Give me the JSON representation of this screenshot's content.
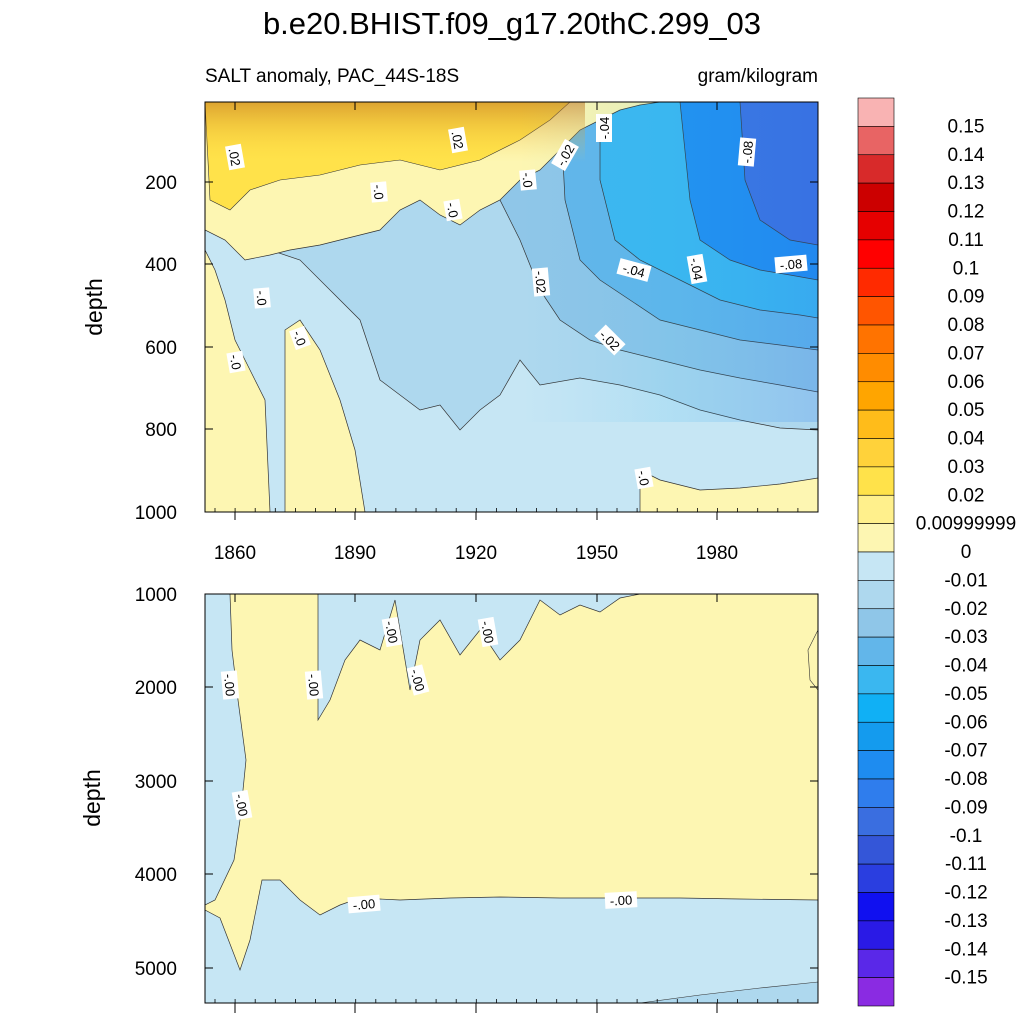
{
  "chart_data": {
    "type": "contour",
    "title": "b.e20.BHIST.f09_g17.20thC.299_03",
    "subtitle_left": "SALT anomaly, PAC_44S-18S",
    "subtitle_right": "gram/kilogram",
    "panels": [
      {
        "name": "upper",
        "ylabel": "depth",
        "y_range": [
          0,
          1000
        ],
        "y_ticks": [
          "200",
          "400",
          "600",
          "800",
          "1000"
        ],
        "x_ticks": [
          "1860",
          "1890",
          "1920",
          "1950",
          "1980"
        ],
        "contour_labels": [
          ".02",
          ".02",
          "-.04",
          "-.02",
          "-.0",
          "-.0",
          "-.0",
          "-.08",
          "-.04",
          "-.04",
          "-.08",
          "-.02",
          "-.0",
          "-.0",
          "-.0",
          "-.02",
          "-.0"
        ]
      },
      {
        "name": "lower",
        "ylabel": "depth",
        "y_range": [
          1000,
          5350
        ],
        "y_ticks": [
          "1000",
          "2000",
          "3000",
          "4000",
          "5000"
        ],
        "contour_labels": [
          "-.00",
          "-.00",
          "-.00",
          "-.00",
          "-.00",
          "-.00",
          "-.00",
          "-.00"
        ]
      }
    ],
    "colorbar": {
      "labels": [
        "0.15",
        "0.14",
        "0.13",
        "0.12",
        "0.11",
        "0.1",
        "0.09",
        "0.08",
        "0.07",
        "0.06",
        "0.05",
        "0.04",
        "0.03",
        "0.02",
        "0.00999999",
        "0",
        "-0.01",
        "-0.02",
        "-0.03",
        "-0.04",
        "-0.05",
        "-0.06",
        "-0.07",
        "-0.08",
        "-0.09",
        "-0.1",
        "-0.11",
        "-0.12",
        "-0.13",
        "-0.14",
        "-0.15"
      ],
      "colors": [
        "#f9b3b3",
        "#e86464",
        "#d82a2a",
        "#cc0000",
        "#e60000",
        "#ff0000",
        "#ff2a00",
        "#ff5500",
        "#ff7300",
        "#ff8c00",
        "#ffa500",
        "#ffbc1a",
        "#ffd23a",
        "#ffe24a",
        "#fff08c",
        "#fdf6b2",
        "#c6e6f4",
        "#aed8ee",
        "#8fc6e8",
        "#62b6ea",
        "#3ab7f0",
        "#10b0f5",
        "#149bee",
        "#1e8cf0",
        "#2f7ded",
        "#3a6ee0",
        "#3456d8",
        "#2a3ee0",
        "#1010f0",
        "#2a1ae6",
        "#5a28e8",
        "#8a2be2"
      ]
    }
  }
}
